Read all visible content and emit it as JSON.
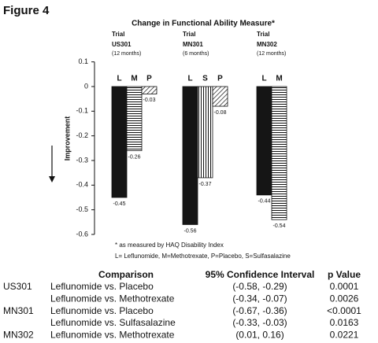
{
  "figure_label": "Figure 4",
  "chart_data": {
    "type": "grouped-bar",
    "title": "Change in Functional Ability Measure*",
    "y_label": "Improvement",
    "group_label": "Trial",
    "ylim": [
      -0.6,
      0.1
    ],
    "yticks": [
      0.1,
      0,
      -0.1,
      -0.2,
      -0.3,
      -0.4,
      -0.5,
      -0.6
    ],
    "patterns": {
      "L": "solid",
      "M": "horizontal",
      "P": "diagonal",
      "S": "vertical"
    },
    "groups": [
      {
        "name": "US301",
        "period": "(12 months)",
        "bars": [
          {
            "letter": "L",
            "value": -0.45
          },
          {
            "letter": "M",
            "value": -0.26
          },
          {
            "letter": "P",
            "value": -0.03
          }
        ]
      },
      {
        "name": "MN301",
        "period": "(6 months)",
        "bars": [
          {
            "letter": "L",
            "value": -0.56
          },
          {
            "letter": "S",
            "value": -0.37
          },
          {
            "letter": "P",
            "value": -0.08
          }
        ]
      },
      {
        "name": "MN302",
        "period": "(12 months)",
        "bars": [
          {
            "letter": "L",
            "value": -0.44
          },
          {
            "letter": "M",
            "value": -0.54
          }
        ]
      }
    ],
    "footnote": "* as measured by HAQ Disability Index",
    "legend": "L= Leflunomide, M=Methotrexate, P=Placebo, S=Sulfasalazine"
  },
  "table": {
    "headers": [
      "Comparison",
      "95% Confidence Interval",
      "p Value"
    ],
    "rows": [
      [
        "US301",
        "Leflunomide vs. Placebo",
        "(-0.58, -0.29)",
        "0.0001"
      ],
      [
        null,
        "Leflunomide vs. Methotrexate",
        "(-0.34, -0.07)",
        "0.0026"
      ],
      [
        "MN301",
        "Leflunomide vs. Placebo",
        "(-0.67, -0.36)",
        "<0.0001"
      ],
      [
        null,
        "Leflunomide vs. Sulfasalazine",
        "(-0.33, -0.03)",
        "0.0163"
      ],
      [
        "MN302",
        "Leflunomide vs. Methotrexate",
        "(0.01, 0.16)",
        "0.0221"
      ]
    ]
  }
}
